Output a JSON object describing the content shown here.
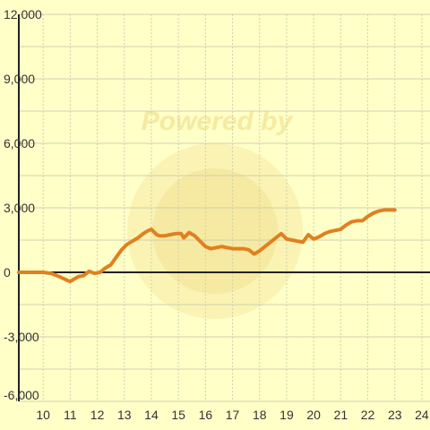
{
  "watermark": {
    "text": "Powered by"
  },
  "colors": {
    "background": "#ffffc8",
    "grid": "#d0d0b0",
    "axis": "#222222",
    "line": "#e08020",
    "watermark": "#f6eaa0"
  },
  "chart_data": {
    "type": "line",
    "title": "",
    "xlabel": "",
    "ylabel": "",
    "xlim": [
      9.1,
      24.3
    ],
    "ylim": [
      -6000,
      12000
    ],
    "x_ticks": [
      10,
      11,
      12,
      13,
      14,
      15,
      16,
      17,
      18,
      19,
      20,
      21,
      22,
      23,
      24
    ],
    "x_tick_labels": [
      "10",
      "11",
      "12",
      "13",
      "14",
      "15",
      "16",
      "17",
      "18",
      "19",
      "20",
      "21",
      "22",
      "23",
      "24"
    ],
    "y_ticks": [
      -6000,
      -3000,
      0,
      3000,
      6000,
      9000,
      12000
    ],
    "y_tick_labels": [
      "-6,000",
      "-3,000",
      "0",
      "3,000",
      "6,000",
      "9,000",
      "12,000"
    ],
    "grid": true,
    "series": [
      {
        "x": [
          9.1,
          9.5,
          10.0,
          10.3,
          10.6,
          10.9,
          11.0,
          11.3,
          11.5,
          11.7,
          11.9,
          12.1,
          12.3,
          12.5,
          12.7,
          12.9,
          13.1,
          13.3,
          13.5,
          13.7,
          13.9,
          14.0,
          14.2,
          14.3,
          14.5,
          14.7,
          14.9,
          15.1,
          15.2,
          15.4,
          15.6,
          15.8,
          16.0,
          16.2,
          16.4,
          16.6,
          16.8,
          17.0,
          17.2,
          17.4,
          17.6,
          17.8,
          18.0,
          18.2,
          18.4,
          18.6,
          18.8,
          19.0,
          19.2,
          19.4,
          19.6,
          19.8,
          20.0,
          20.2,
          20.4,
          20.6,
          20.8,
          21.0,
          21.2,
          21.4,
          21.6,
          21.8,
          22.0,
          22.2,
          22.4,
          22.6,
          22.8,
          23.0
        ],
        "y": [
          0,
          0,
          0,
          -50,
          -200,
          -380,
          -420,
          -200,
          -150,
          50,
          -50,
          0,
          200,
          350,
          700,
          1050,
          1300,
          1450,
          1600,
          1800,
          1950,
          2000,
          1750,
          1700,
          1700,
          1750,
          1800,
          1800,
          1600,
          1850,
          1700,
          1450,
          1200,
          1100,
          1150,
          1200,
          1150,
          1100,
          1100,
          1100,
          1050,
          850,
          1000,
          1200,
          1400,
          1600,
          1800,
          1550,
          1500,
          1450,
          1400,
          1750,
          1550,
          1650,
          1800,
          1900,
          1950,
          2000,
          2200,
          2350,
          2400,
          2400,
          2600,
          2750,
          2850,
          2900,
          2900,
          2900
        ]
      }
    ]
  }
}
